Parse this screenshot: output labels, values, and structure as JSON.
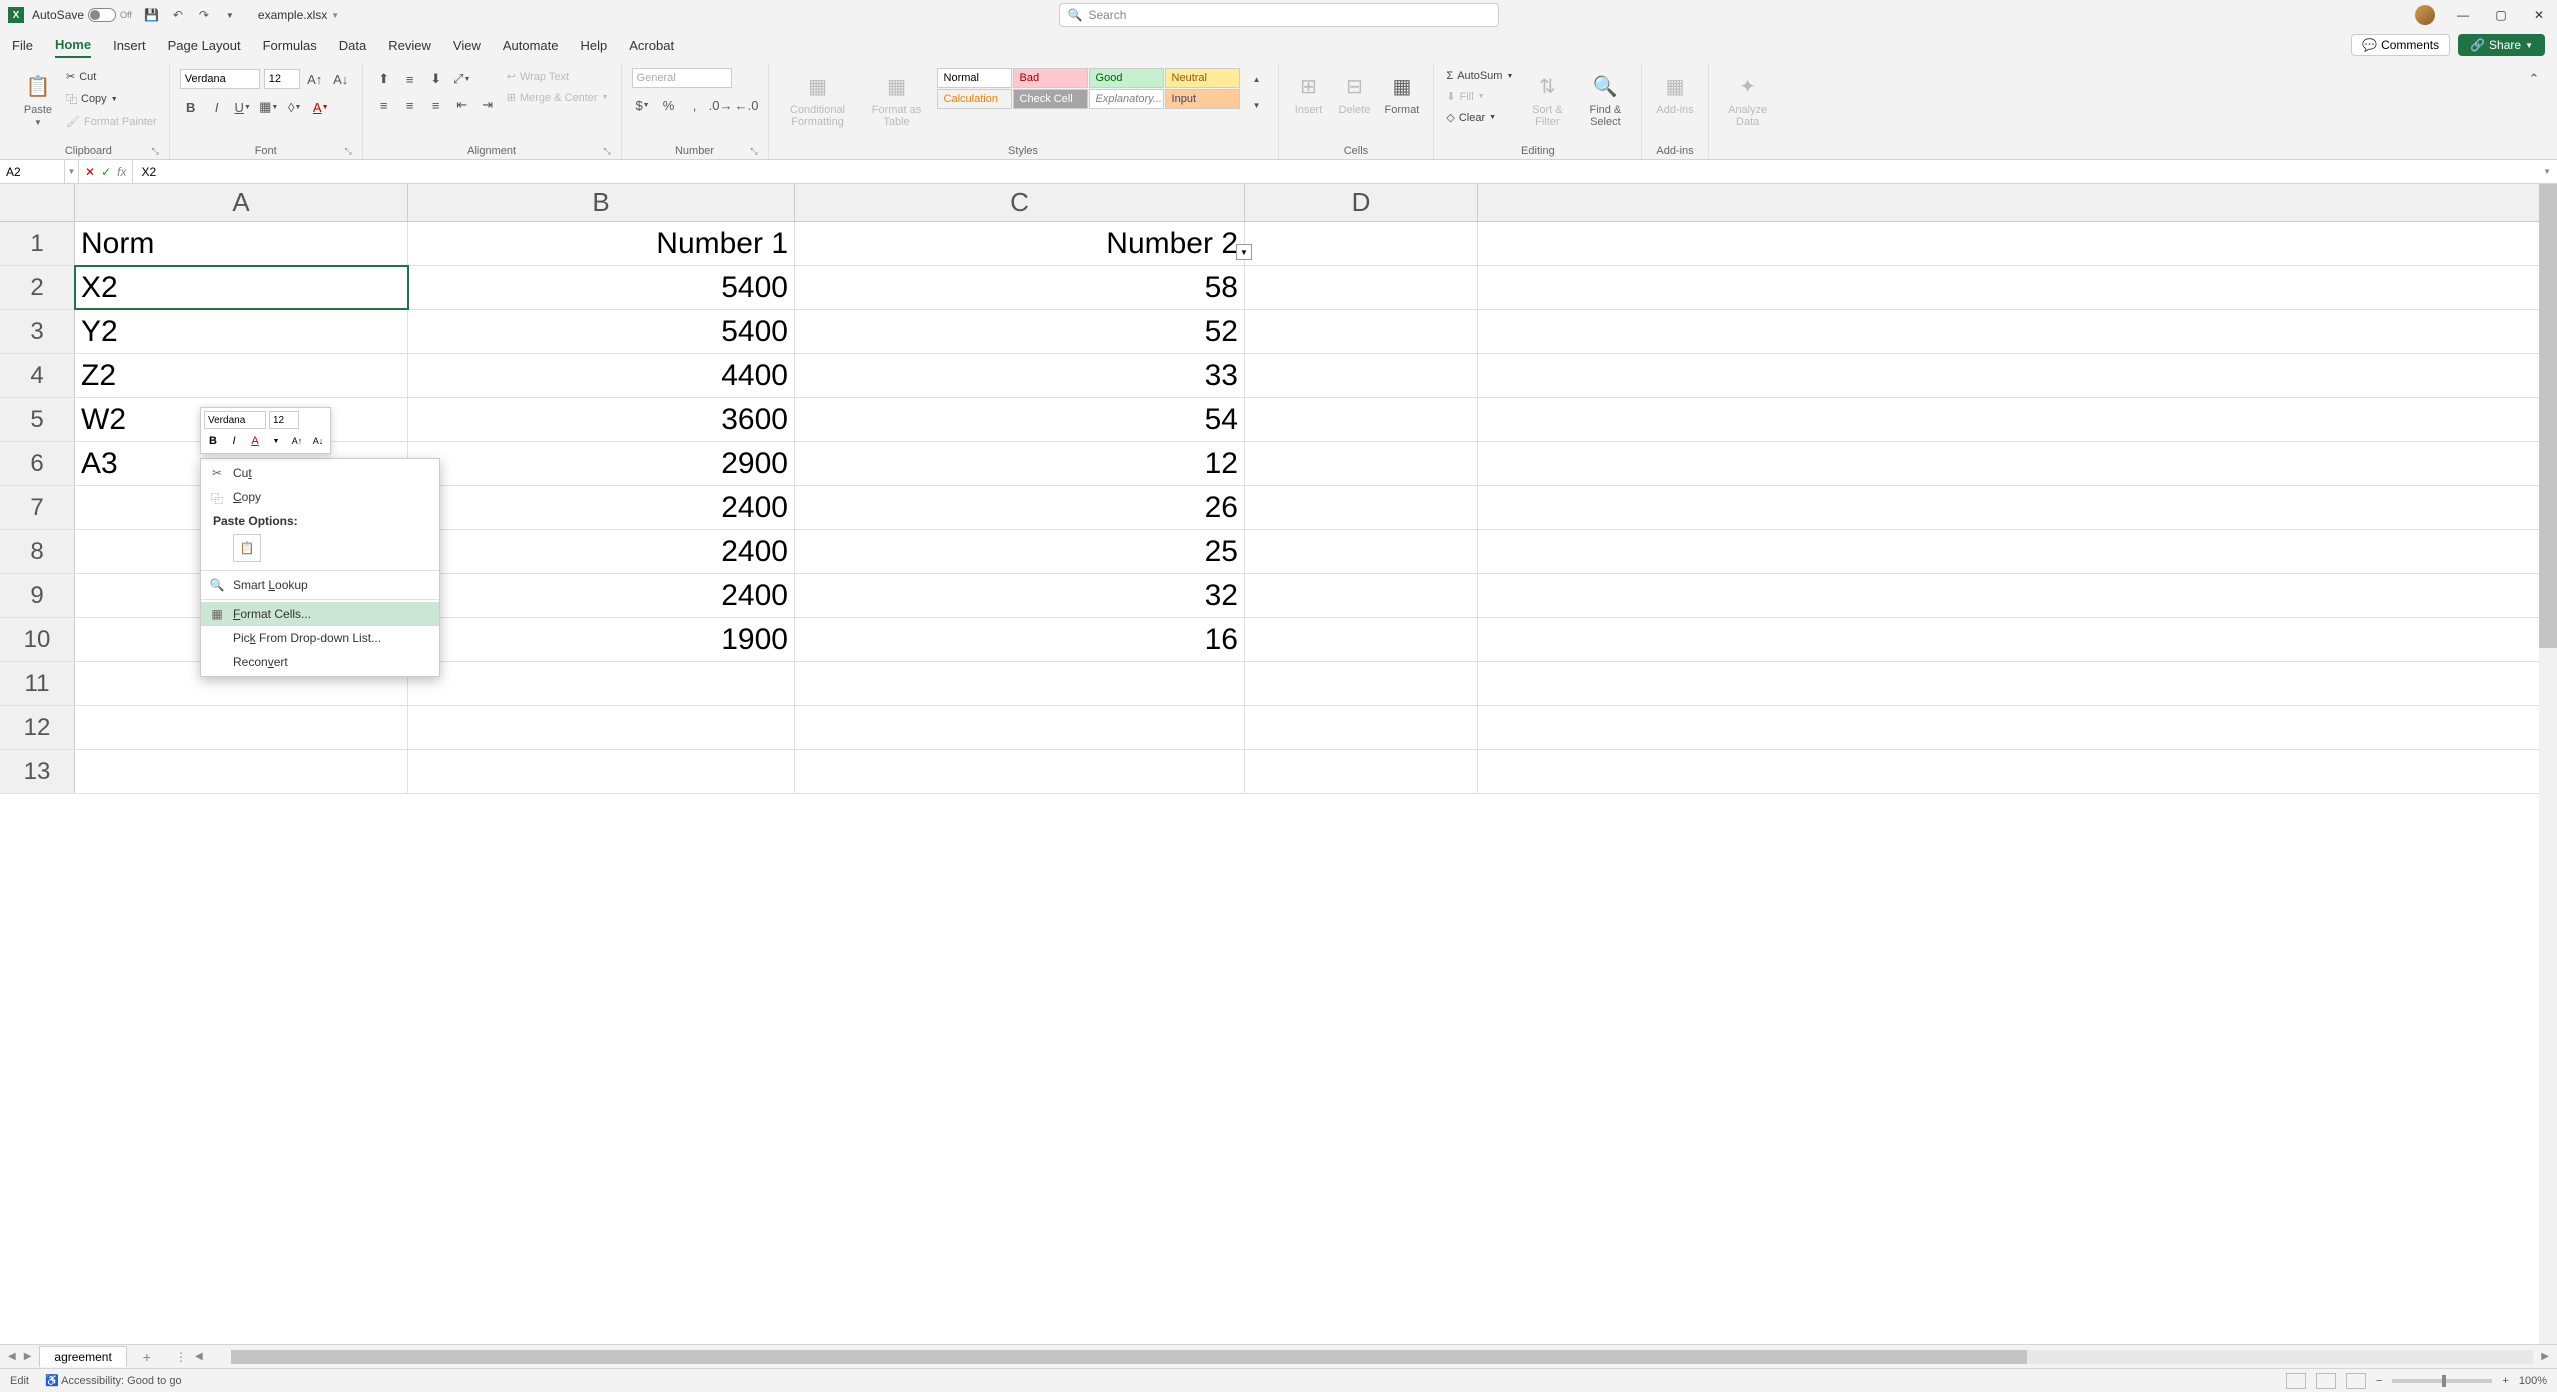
{
  "titlebar": {
    "autosave_label": "AutoSave",
    "autosave_state": "Off",
    "filename": "example.xlsx",
    "search_placeholder": "Search"
  },
  "ribbon_tabs": [
    "File",
    "Home",
    "Insert",
    "Page Layout",
    "Formulas",
    "Data",
    "Review",
    "View",
    "Automate",
    "Help",
    "Acrobat"
  ],
  "active_tab": "Home",
  "comments_label": "Comments",
  "share_label": "Share",
  "ribbon": {
    "clipboard": {
      "label": "Clipboard",
      "paste": "Paste",
      "cut": "Cut",
      "copy": "Copy",
      "format_painter": "Format Painter"
    },
    "font": {
      "label": "Font",
      "name": "Verdana",
      "size": "12"
    },
    "alignment": {
      "label": "Alignment",
      "wrap": "Wrap Text",
      "merge": "Merge & Center"
    },
    "number": {
      "label": "Number",
      "format": "General"
    },
    "styles": {
      "label": "Styles",
      "conditional": "Conditional Formatting",
      "format_table": "Format as Table",
      "cells": [
        "Normal",
        "Bad",
        "Good",
        "Neutral",
        "Calculation",
        "Check Cell",
        "Explanatory...",
        "Input"
      ]
    },
    "cells_group": {
      "label": "Cells",
      "insert": "Insert",
      "delete": "Delete",
      "format": "Format"
    },
    "editing": {
      "label": "Editing",
      "autosum": "AutoSum",
      "fill": "Fill",
      "clear": "Clear",
      "sort": "Sort & Filter",
      "find": "Find & Select"
    },
    "addins": {
      "label": "Add-ins",
      "btn": "Add-ins"
    },
    "analyze": {
      "label": "",
      "btn": "Analyze Data"
    }
  },
  "formula_bar": {
    "name_box": "A2",
    "formula": "X2"
  },
  "columns": [
    "A",
    "B",
    "C",
    "D"
  ],
  "headers": {
    "A": "Norm",
    "B": "Number 1",
    "C": "Number 2"
  },
  "rows": [
    {
      "A": "X2",
      "B": "5400",
      "C": "58"
    },
    {
      "A": "Y2",
      "B": "5400",
      "C": "52"
    },
    {
      "A": "Z2",
      "B": "4400",
      "C": "33"
    },
    {
      "A": "W2",
      "B": "3600",
      "C": "54"
    },
    {
      "A": "A3",
      "B": "2900",
      "C": "12"
    },
    {
      "A": "",
      "B": "2400",
      "C": "26"
    },
    {
      "A": "",
      "B": "2400",
      "C": "25"
    },
    {
      "A": "",
      "B": "2400",
      "C": "32"
    },
    {
      "A": "",
      "B": "1900",
      "C": "16"
    }
  ],
  "selected_cell": "A2",
  "mini_toolbar": {
    "font": "Verdana",
    "size": "12"
  },
  "context_menu": {
    "cut": "Cut",
    "copy": "Copy",
    "paste_header": "Paste Options:",
    "smart_lookup": "Smart Lookup",
    "format_cells": "Format Cells...",
    "pick_list": "Pick From Drop-down List...",
    "reconvert": "Reconvert"
  },
  "sheet": {
    "name": "agreement"
  },
  "status": {
    "mode": "Edit",
    "accessibility": "Accessibility: Good to go",
    "zoom": "100%"
  }
}
